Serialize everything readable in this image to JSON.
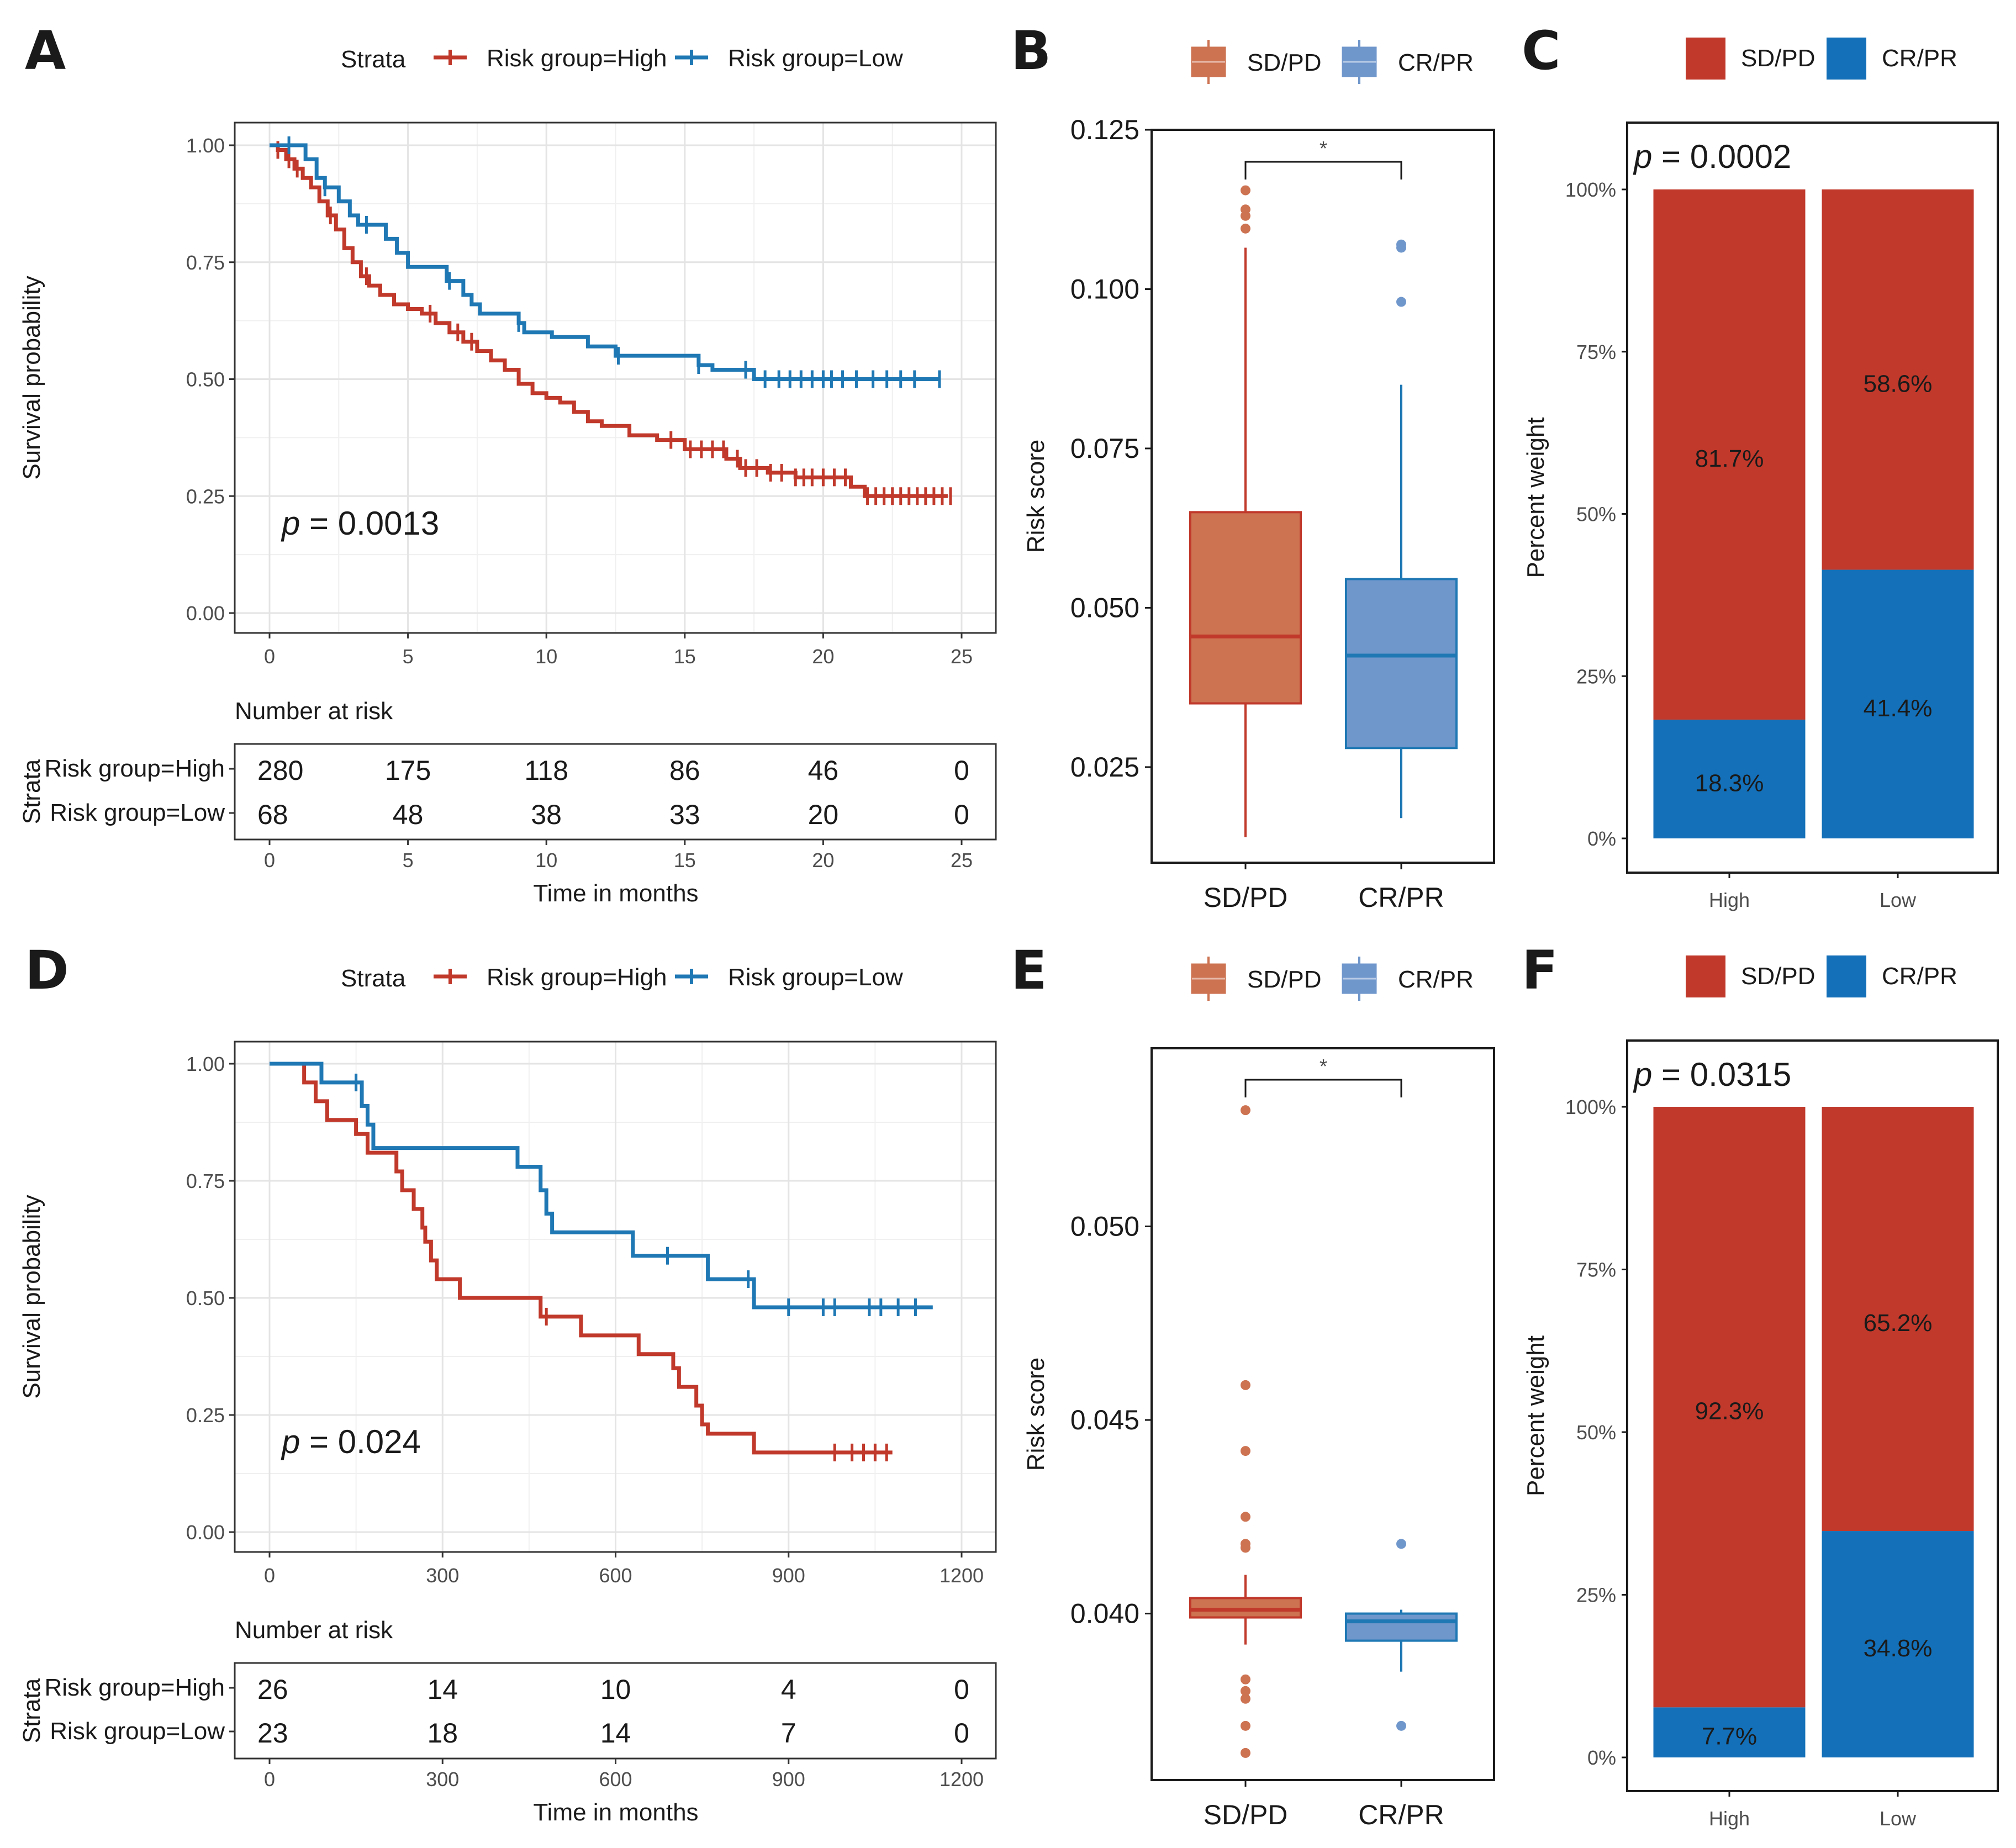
{
  "colors": {
    "high": "#c0392b",
    "low": "#1f78b4",
    "box_high": "#cd7352",
    "box_low": "#7097cc",
    "bar_high": "#c0392b",
    "bar_low": "#1470b8"
  },
  "chart_data": [
    {
      "panel": "A",
      "type": "line",
      "subtype": "kaplan-meier",
      "legend_title": "Strata",
      "ylabel": "Survival probability",
      "xlabel": "Time in months",
      "xlim": [
        0,
        25
      ],
      "xticks": [
        "0",
        "5",
        "10",
        "15",
        "20",
        "25"
      ],
      "ylim": [
        0,
        1
      ],
      "yticks": [
        "0.00",
        "0.25",
        "0.50",
        "0.75",
        "1.00"
      ],
      "pvalue_prefix": "p",
      "pvalue_text": " = 0.0013",
      "risk_title": "Number at risk",
      "risk_ylabel": "Strata",
      "series": [
        {
          "name": "Risk group=High",
          "color_key": "high",
          "steps": [
            [
              0,
              1
            ],
            [
              0.3,
              0.99
            ],
            [
              0.6,
              0.97
            ],
            [
              0.9,
              0.95
            ],
            [
              1.2,
              0.93
            ],
            [
              1.5,
              0.91
            ],
            [
              1.8,
              0.88
            ],
            [
              2.1,
              0.85
            ],
            [
              2.4,
              0.82
            ],
            [
              2.7,
              0.78
            ],
            [
              3,
              0.75
            ],
            [
              3.3,
              0.72
            ],
            [
              3.6,
              0.7
            ],
            [
              4,
              0.68
            ],
            [
              4.5,
              0.66
            ],
            [
              5,
              0.65
            ],
            [
              5.5,
              0.64
            ],
            [
              6,
              0.62
            ],
            [
              6.5,
              0.6
            ],
            [
              7,
              0.58
            ],
            [
              7.5,
              0.56
            ],
            [
              8,
              0.54
            ],
            [
              8.5,
              0.52
            ],
            [
              9,
              0.49
            ],
            [
              9.5,
              0.47
            ],
            [
              10,
              0.46
            ],
            [
              10.5,
              0.45
            ],
            [
              11,
              0.43
            ],
            [
              11.5,
              0.41
            ],
            [
              12,
              0.4
            ],
            [
              13,
              0.38
            ],
            [
              14,
              0.37
            ],
            [
              15,
              0.35
            ],
            [
              16,
              0.35
            ],
            [
              16.5,
              0.33
            ],
            [
              17,
              0.31
            ],
            [
              18,
              0.3
            ],
            [
              19,
              0.29
            ],
            [
              20,
              0.29
            ],
            [
              21,
              0.27
            ],
            [
              21.5,
              0.25
            ],
            [
              24.5,
              0.25
            ]
          ],
          "censors": [
            0.3,
            0.7,
            1.0,
            2.2,
            3.5,
            5.8,
            6.8,
            7.3,
            14.5,
            15.2,
            15.6,
            16.0,
            16.4,
            16.9,
            17.2,
            17.6,
            18.1,
            18.5,
            19.0,
            19.3,
            19.6,
            20.0,
            20.4,
            20.8,
            21.6,
            21.9,
            22.2,
            22.5,
            22.8,
            23.1,
            23.4,
            23.7,
            24.0,
            24.3,
            24.6
          ]
        },
        {
          "name": "Risk group=Low",
          "color_key": "low",
          "steps": [
            [
              0,
              1
            ],
            [
              1.3,
              0.97
            ],
            [
              1.7,
              0.93
            ],
            [
              2.0,
              0.91
            ],
            [
              2.5,
              0.88
            ],
            [
              2.9,
              0.85
            ],
            [
              3.2,
              0.83
            ],
            [
              4.2,
              0.8
            ],
            [
              4.6,
              0.77
            ],
            [
              5.0,
              0.74
            ],
            [
              6.4,
              0.71
            ],
            [
              7.0,
              0.68
            ],
            [
              7.3,
              0.66
            ],
            [
              7.6,
              0.64
            ],
            [
              9.0,
              0.62
            ],
            [
              9.2,
              0.6
            ],
            [
              10.2,
              0.59
            ],
            [
              11.5,
              0.57
            ],
            [
              12.5,
              0.55
            ],
            [
              15.5,
              0.53
            ],
            [
              16.0,
              0.52
            ],
            [
              17.5,
              0.5
            ],
            [
              24.2,
              0.5
            ]
          ],
          "censors": [
            0.7,
            2.0,
            3.5,
            6.5,
            9.0,
            12.6,
            15.5,
            17.2,
            17.9,
            18.4,
            18.8,
            19.2,
            19.6,
            20.0,
            20.3,
            20.7,
            21.2,
            21.8,
            22.3,
            22.8,
            23.3,
            24.2
          ]
        }
      ],
      "risk_rows": [
        {
          "label": "Risk group=High",
          "color_key": "high",
          "values": [
            "280",
            "175",
            "118",
            "86",
            "46",
            "0"
          ]
        },
        {
          "label": "Risk group=Low",
          "color_key": "low",
          "values": [
            "68",
            "48",
            "38",
            "33",
            "20",
            "0"
          ]
        }
      ]
    },
    {
      "panel": "B",
      "type": "box",
      "ylabel": "Risk score",
      "ylim": [
        0.01,
        0.125
      ],
      "yticks": [
        "0.025",
        "0.050",
        "0.075",
        "0.100",
        "0.125"
      ],
      "categories": [
        "SD/PD",
        "CR/PR"
      ],
      "significance": "*",
      "boxes": [
        {
          "name": "SD/PD",
          "color_key": "box_high",
          "min": 0.014,
          "q1": 0.035,
          "median": 0.0455,
          "q3": 0.065,
          "max": 0.1065,
          "outliers": [
            0.1095,
            0.1115,
            0.1125,
            0.1155
          ]
        },
        {
          "name": "CR/PR",
          "color_key": "box_low",
          "min": 0.017,
          "q1": 0.028,
          "median": 0.0425,
          "q3": 0.0545,
          "max": 0.085,
          "outliers": [
            0.098,
            0.1065,
            0.107
          ]
        }
      ]
    },
    {
      "panel": "C",
      "type": "bar",
      "subtype": "stacked-percent",
      "ylabel": "Percent weight",
      "yticks": [
        "0%",
        "25%",
        "50%",
        "75%",
        "100%"
      ],
      "categories": [
        "High",
        "Low"
      ],
      "pvalue_prefix": "p",
      "pvalue_text": " = 0.0002",
      "series": [
        {
          "name": "SD/PD",
          "color_key": "bar_high",
          "values": [
            81.7,
            58.6
          ],
          "labels": [
            "81.7%",
            "58.6%"
          ]
        },
        {
          "name": "CR/PR",
          "color_key": "bar_low",
          "values": [
            18.3,
            41.4
          ],
          "labels": [
            "18.3%",
            "41.4%"
          ]
        }
      ]
    },
    {
      "panel": "D",
      "type": "line",
      "subtype": "kaplan-meier",
      "legend_title": "Strata",
      "ylabel": "Survival probability",
      "xlabel": "Time in months",
      "xlim": [
        0,
        1200
      ],
      "xticks": [
        "0",
        "300",
        "600",
        "900",
        "1200"
      ],
      "ylim": [
        0,
        1
      ],
      "yticks": [
        "0.00",
        "0.25",
        "0.50",
        "0.75",
        "1.00"
      ],
      "pvalue_prefix": "p",
      "pvalue_text": " = 0.024",
      "risk_title": "Number at risk",
      "risk_ylabel": "Strata",
      "series": [
        {
          "name": "Risk group=High",
          "color_key": "high",
          "steps": [
            [
              0,
              1
            ],
            [
              60,
              0.96
            ],
            [
              80,
              0.92
            ],
            [
              100,
              0.88
            ],
            [
              150,
              0.85
            ],
            [
              170,
              0.81
            ],
            [
              220,
              0.77
            ],
            [
              230,
              0.73
            ],
            [
              250,
              0.69
            ],
            [
              265,
              0.65
            ],
            [
              270,
              0.62
            ],
            [
              280,
              0.58
            ],
            [
              290,
              0.54
            ],
            [
              330,
              0.5
            ],
            [
              470,
              0.46
            ],
            [
              540,
              0.42
            ],
            [
              640,
              0.38
            ],
            [
              700,
              0.35
            ],
            [
              710,
              0.31
            ],
            [
              740,
              0.27
            ],
            [
              750,
              0.23
            ],
            [
              760,
              0.21
            ],
            [
              840,
              0.17
            ],
            [
              1080,
              0.17
            ]
          ],
          "censors": [
            480,
            980,
            1010,
            1030,
            1050,
            1070
          ]
        },
        {
          "name": "Risk group=Low",
          "color_key": "low",
          "steps": [
            [
              0,
              1
            ],
            [
              90,
              0.96
            ],
            [
              160,
              0.91
            ],
            [
              170,
              0.87
            ],
            [
              180,
              0.82
            ],
            [
              430,
              0.78
            ],
            [
              470,
              0.73
            ],
            [
              480,
              0.68
            ],
            [
              490,
              0.64
            ],
            [
              630,
              0.59
            ],
            [
              760,
              0.54
            ],
            [
              840,
              0.48
            ],
            [
              1150,
              0.48
            ]
          ],
          "censors": [
            150,
            690,
            830,
            900,
            960,
            980,
            1040,
            1060,
            1090,
            1120
          ]
        }
      ],
      "risk_rows": [
        {
          "label": "Risk group=High",
          "color_key": "high",
          "values": [
            "26",
            "14",
            "10",
            "4",
            "0"
          ]
        },
        {
          "label": "Risk group=Low",
          "color_key": "low",
          "values": [
            "23",
            "18",
            "14",
            "7",
            "0"
          ]
        }
      ]
    },
    {
      "panel": "E",
      "type": "box",
      "ylabel": "Risk score",
      "ylim": [
        0.0357,
        0.0546
      ],
      "yticks": [
        "0.040",
        "0.045",
        "0.050"
      ],
      "categories": [
        "SD/PD",
        "CR/PR"
      ],
      "significance": "*",
      "boxes": [
        {
          "name": "SD/PD",
          "color_key": "box_high",
          "min": 0.0392,
          "q1": 0.0399,
          "median": 0.0401,
          "q3": 0.0404,
          "max": 0.041,
          "outliers": [
            0.0364,
            0.0371,
            0.0378,
            0.038,
            0.0383,
            0.0417,
            0.0418,
            0.0425,
            0.0442,
            0.0459,
            0.053
          ]
        },
        {
          "name": "CR/PR",
          "color_key": "box_low",
          "min": 0.0385,
          "q1": 0.0393,
          "median": 0.0398,
          "q3": 0.04,
          "max": 0.0401,
          "outliers": [
            0.0371,
            0.0418
          ]
        }
      ]
    },
    {
      "panel": "F",
      "type": "bar",
      "subtype": "stacked-percent",
      "ylabel": "Percent weight",
      "yticks": [
        "0%",
        "25%",
        "50%",
        "75%",
        "100%"
      ],
      "categories": [
        "High",
        "Low"
      ],
      "pvalue_prefix": "p",
      "pvalue_text": " = 0.0315",
      "series": [
        {
          "name": "SD/PD",
          "color_key": "bar_high",
          "values": [
            92.3,
            65.2
          ],
          "labels": [
            "92.3%",
            "65.2%"
          ]
        },
        {
          "name": "CR/PR",
          "color_key": "bar_low",
          "values": [
            7.7,
            34.8
          ],
          "labels": [
            "7.7%",
            "34.8%"
          ]
        }
      ]
    }
  ]
}
